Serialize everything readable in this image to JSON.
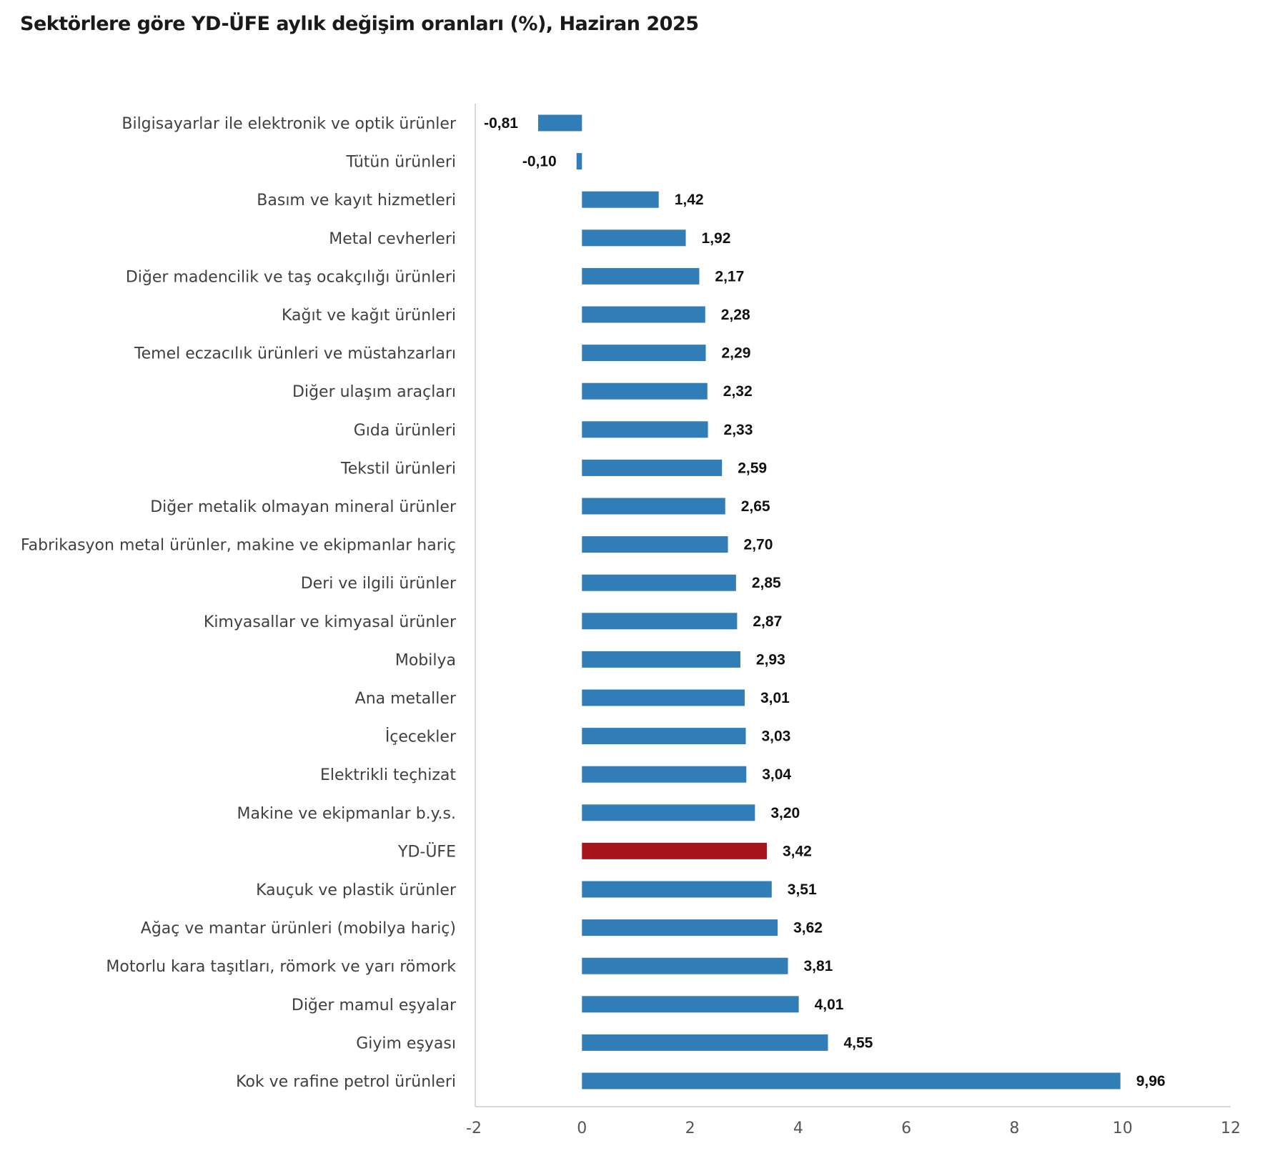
{
  "chart_data": {
    "type": "bar",
    "orientation": "horizontal",
    "title": "Sektörlere göre YD-ÜFE aylık değişim oranları (%), Haziran 2025",
    "xlabel": "",
    "ylabel": "",
    "xlim": [
      -2,
      12
    ],
    "xticks": [
      -2,
      0,
      2,
      4,
      6,
      8,
      10,
      12
    ],
    "xtick_labels": [
      "-2",
      "0",
      "2",
      "4",
      "6",
      "8",
      "10",
      "12"
    ],
    "grid": false,
    "legend": "none",
    "colors": {
      "default": "#317DB8",
      "highlight": "#A8141C"
    },
    "highlight_category": "YD-ÜFE",
    "categories": [
      "Bilgisayarlar ile elektronik ve optik ürünler",
      "Tütün ürünleri",
      "Basım ve kayıt hizmetleri",
      "Metal cevherleri",
      "Diğer madencilik ve taş ocakçılığı ürünleri",
      "Kağıt ve kağıt ürünleri",
      "Temel eczacılık ürünleri ve müstahzarları",
      "Diğer ulaşım araçları",
      "Gıda ürünleri",
      "Tekstil ürünleri",
      "Diğer metalik olmayan mineral ürünler",
      "Fabrikasyon metal ürünler, makine ve ekipmanlar hariç",
      "Deri ve ilgili ürünler",
      "Kimyasallar ve kimyasal ürünler",
      "Mobilya",
      "Ana metaller",
      "İçecekler",
      "Elektrikli teçhizat",
      "Makine ve ekipmanlar b.y.s.",
      "YD-ÜFE",
      "Kauçuk ve plastik ürünler",
      "Ağaç ve mantar ürünleri (mobilya hariç)",
      "Motorlu kara taşıtları, römork ve yarı römork",
      "Diğer mamul eşyalar",
      "Giyim eşyası",
      "Kok ve rafine petrol ürünleri"
    ],
    "values": [
      -0.81,
      -0.1,
      1.42,
      1.92,
      2.17,
      2.28,
      2.29,
      2.32,
      2.33,
      2.59,
      2.65,
      2.7,
      2.85,
      2.87,
      2.93,
      3.01,
      3.03,
      3.04,
      3.2,
      3.42,
      3.51,
      3.62,
      3.81,
      4.01,
      4.55,
      9.96
    ],
    "value_labels": [
      "-0,81",
      "-0,10",
      "1,42",
      "1,92",
      "2,17",
      "2,28",
      "2,29",
      "2,32",
      "2,33",
      "2,59",
      "2,65",
      "2,70",
      "2,85",
      "2,87",
      "2,93",
      "3,01",
      "3,03",
      "3,04",
      "3,20",
      "3,42",
      "3,51",
      "3,62",
      "3,81",
      "4,01",
      "4,55",
      "9,96"
    ]
  }
}
